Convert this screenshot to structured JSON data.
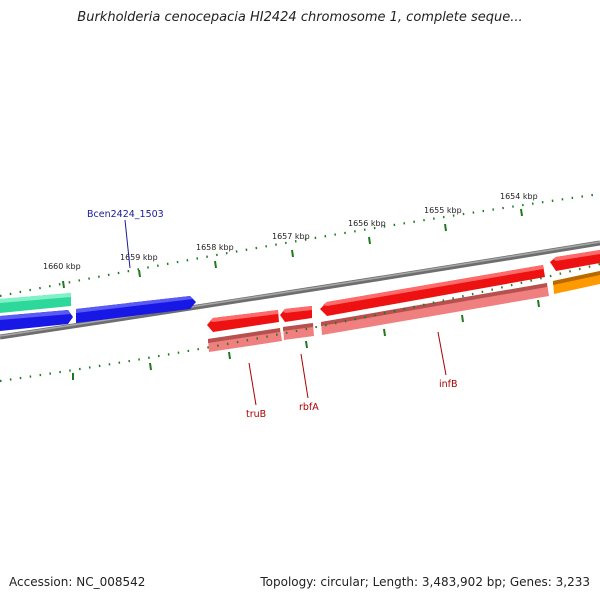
{
  "title": "Burkholderia cenocepacia HI2424 chromosome 1, complete seque...",
  "footer": {
    "accession": "Accession: NC_008542",
    "topology": "Topology: circular; Length: 3,483,902 bp; Genes: 3,233"
  },
  "colors": {
    "backbone": "#7a7a7a",
    "tick": "#1f7a1f",
    "forward_gene": "#1a1aee",
    "forward_gene_alt": "#33e8a0",
    "reverse_gene": "#ee1111",
    "reverse_cds": "#f08080",
    "other_gene": "#ff9900",
    "label_forward": "#1a1a99",
    "label_reverse": "#aa0000"
  },
  "scale": {
    "ticks": [
      {
        "label": "1660 kbp"
      },
      {
        "label": "1659 kbp"
      },
      {
        "label": "1658 kbp"
      },
      {
        "label": "1657 kbp"
      },
      {
        "label": "1656 kbp"
      },
      {
        "label": "1655 kbp"
      },
      {
        "label": "1654 kbp"
      }
    ]
  },
  "genes": {
    "labels": [
      {
        "name": "Bcen2424_1503",
        "strand": "forward"
      },
      {
        "name": "truB",
        "strand": "reverse"
      },
      {
        "name": "rbfA",
        "strand": "reverse"
      },
      {
        "name": "infB",
        "strand": "reverse"
      }
    ]
  }
}
